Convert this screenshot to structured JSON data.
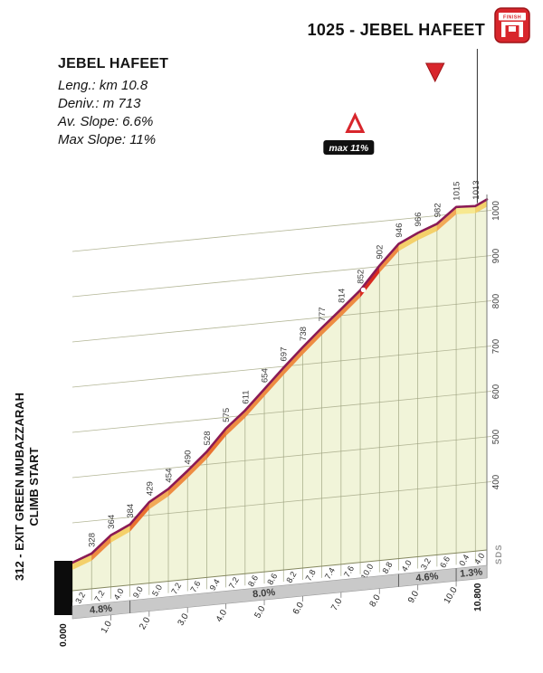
{
  "header": {
    "title": "1025 - JEBEL HAFEET",
    "finish_icon_text": "FINISH"
  },
  "info": {
    "title": "JEBEL HAFEET",
    "lines": [
      "Leng.: km 10.8",
      "Deniv.: m 713",
      "Av. Slope: 6.6%",
      "Max Slope: 11%"
    ]
  },
  "start": {
    "line1": "312 - EXIT GREEN MUBAZZARAH",
    "line2": "CLIMB START"
  },
  "credit": "SDS",
  "colors": {
    "accent_red": "#d8262c",
    "profile_line": "#8a1a55",
    "area_fill": "#f1f4d9",
    "band_gray": "#c9c9c9",
    "grid": "#b3b696",
    "road_colors": {
      "g0": "#f7e88f",
      "g2": "#f4d06a",
      "g5": "#f2aa58",
      "g7": "#ee8c42",
      "g9": "#ea7330",
      "g10": "#d92b20"
    }
  },
  "chart_data": {
    "type": "area",
    "title": "Jebel Hafeet climb elevation profile",
    "x_unit": "km",
    "y_unit": "m",
    "length_km": 10.8,
    "start_elevation": 312,
    "summit_elevation": 1025,
    "x_km": [
      0,
      0.5,
      1,
      1.5,
      2,
      2.5,
      3,
      3.5,
      4,
      4.5,
      5,
      5.5,
      6,
      6.5,
      7,
      7.5,
      8,
      8.5,
      9,
      9.5,
      10,
      10.5,
      10.8
    ],
    "elevation_m": [
      312,
      328,
      364,
      384,
      429,
      454,
      490,
      528,
      575,
      611,
      654,
      697,
      738,
      777,
      814,
      852,
      902,
      946,
      966,
      982,
      1015,
      1013,
      1025
    ],
    "point_labels": [
      "328",
      "364",
      "384",
      "429",
      "454",
      "490",
      "528",
      "575",
      "611",
      "654",
      "697",
      "738",
      "777",
      "814",
      "852",
      "902",
      "946",
      "966",
      "982",
      "1015",
      "1013"
    ],
    "segment_gradient_labels": [
      "3.2",
      "7.2",
      "4.0",
      "9.0",
      "5.0",
      "7.2",
      "7.6",
      "9.4",
      "7.2",
      "8.6",
      "8.6",
      "8.2",
      "7.8",
      "7.4",
      "7.6",
      "10.0",
      "8.8",
      "4.0",
      "3.2",
      "6.6",
      "0.4",
      "4.0"
    ],
    "avg_gradient_bands": [
      {
        "from_km": 0,
        "to_km": 1.5,
        "label": "4.8%"
      },
      {
        "from_km": 1.5,
        "to_km": 8.5,
        "label": "8.0%"
      },
      {
        "from_km": 8.5,
        "to_km": 10,
        "label": "4.6%"
      },
      {
        "from_km": 10,
        "to_km": 10.8,
        "label": "1.3%"
      }
    ],
    "y_ticks": [
      400,
      500,
      600,
      700,
      800,
      900,
      1000
    ],
    "x_tick_km": [
      1,
      2,
      3,
      4,
      5,
      6,
      7,
      8,
      9,
      10
    ],
    "x_tick_labels": [
      "1.0",
      "2.0",
      "3.0",
      "4.0",
      "5.0",
      "6.0",
      "7.0",
      "8.0",
      "9.0",
      "10.0"
    ],
    "x_start_label": "0.000",
    "x_end_label": "10.800",
    "max_marker": {
      "label": "max 11%",
      "km": 7.2,
      "dot_km": 7.58
    },
    "finish_triangle_km": 9.45,
    "finish_line_km": 10.55
  }
}
